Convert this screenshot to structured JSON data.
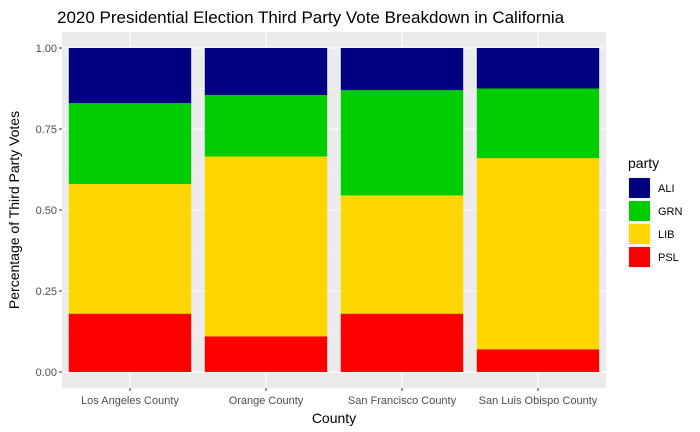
{
  "chart_data": {
    "type": "bar",
    "stacked": true,
    "title": "2020 Presidential Election Third Party Vote Breakdown in California",
    "xlabel": "County",
    "ylabel": "Percentage of Third Party Votes",
    "ylim": [
      0,
      1
    ],
    "yticks": [
      "0.00",
      "0.25",
      "0.50",
      "0.75",
      "1.00"
    ],
    "grid": true,
    "legend_position": "right",
    "legend_title": "party",
    "categories": [
      "Los Angeles County",
      "Orange County",
      "San Francisco County",
      "San Luis Obispo County"
    ],
    "series": [
      {
        "name": "PSL",
        "color": "#ff0000",
        "values": [
          0.18,
          0.11,
          0.18,
          0.07
        ]
      },
      {
        "name": "LIB",
        "color": "#ffd700",
        "values": [
          0.4,
          0.555,
          0.365,
          0.59
        ]
      },
      {
        "name": "GRN",
        "color": "#00cd00",
        "values": [
          0.25,
          0.19,
          0.325,
          0.215
        ]
      },
      {
        "name": "ALI",
        "color": "#000080",
        "values": [
          0.17,
          0.145,
          0.13,
          0.125
        ]
      }
    ],
    "legend_order": [
      "ALI",
      "GRN",
      "LIB",
      "PSL"
    ]
  }
}
